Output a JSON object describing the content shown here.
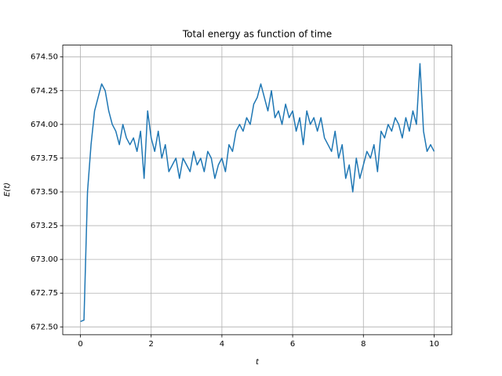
{
  "chart_data": {
    "type": "line",
    "title": "Total energy as function of time",
    "xlabel": "t",
    "ylabel": "E(t)",
    "x": [
      0,
      0.1,
      0.2,
      0.3,
      0.4,
      0.5,
      0.6,
      0.7,
      0.8,
      0.9,
      1.0,
      1.1,
      1.2,
      1.3,
      1.4,
      1.5,
      1.6,
      1.7,
      1.8,
      1.9,
      2.0,
      2.1,
      2.2,
      2.3,
      2.4,
      2.5,
      2.6,
      2.7,
      2.8,
      2.9,
      3.0,
      3.1,
      3.2,
      3.3,
      3.4,
      3.5,
      3.6,
      3.7,
      3.8,
      3.9,
      4.0,
      4.1,
      4.2,
      4.3,
      4.4,
      4.5,
      4.6,
      4.7,
      4.8,
      4.9,
      5.0,
      5.1,
      5.2,
      5.3,
      5.4,
      5.5,
      5.6,
      5.7,
      5.8,
      5.9,
      6.0,
      6.1,
      6.2,
      6.3,
      6.4,
      6.5,
      6.6,
      6.7,
      6.8,
      6.9,
      7.0,
      7.1,
      7.2,
      7.3,
      7.4,
      7.5,
      7.6,
      7.7,
      7.8,
      7.9,
      8.0,
      8.1,
      8.2,
      8.3,
      8.4,
      8.5,
      8.6,
      8.7,
      8.8,
      8.9,
      9.0,
      9.1,
      9.2,
      9.3,
      9.4,
      9.5,
      9.6,
      9.7,
      9.8,
      9.9,
      10.0
    ],
    "values": [
      672.54,
      672.55,
      673.5,
      673.85,
      674.1,
      674.2,
      674.3,
      674.25,
      674.1,
      674.0,
      673.95,
      673.85,
      674.0,
      673.9,
      673.85,
      673.9,
      673.8,
      673.95,
      673.6,
      674.1,
      673.9,
      673.8,
      673.95,
      673.75,
      673.85,
      673.65,
      673.7,
      673.75,
      673.6,
      673.75,
      673.7,
      673.65,
      673.8,
      673.7,
      673.75,
      673.65,
      673.8,
      673.75,
      673.6,
      673.7,
      673.75,
      673.65,
      673.85,
      673.8,
      673.95,
      674.0,
      673.95,
      674.05,
      674.0,
      674.15,
      674.2,
      674.3,
      674.2,
      674.1,
      674.25,
      674.05,
      674.1,
      674.0,
      674.15,
      674.05,
      674.1,
      673.95,
      674.05,
      673.85,
      674.1,
      674.0,
      674.05,
      673.95,
      674.05,
      673.9,
      673.85,
      673.8,
      673.95,
      673.75,
      673.85,
      673.6,
      673.7,
      673.5,
      673.75,
      673.6,
      673.7,
      673.8,
      673.75,
      673.85,
      673.65,
      673.95,
      673.9,
      674.0,
      673.95,
      674.05,
      674.0,
      673.9,
      674.05,
      673.95,
      674.1,
      674.0,
      674.45,
      673.95,
      673.8,
      673.85,
      673.8
    ],
    "color": "#1f77b4",
    "xlim": [
      -0.5,
      10.5
    ],
    "xticks": [
      0,
      2,
      4,
      6,
      8,
      10
    ],
    "ylim": [
      672.4425,
      674.5875
    ],
    "yticks": [
      {
        "value": 672.5,
        "label": "672.50"
      },
      {
        "value": 672.75,
        "label": "672.75"
      },
      {
        "value": 673,
        "label": "673.00"
      },
      {
        "value": 673.25,
        "label": "673.25"
      },
      {
        "value": 673.5,
        "label": "673.50"
      },
      {
        "value": 673.75,
        "label": "673.75"
      },
      {
        "value": 674,
        "label": "674.00"
      },
      {
        "value": 674.25,
        "label": "674.25"
      },
      {
        "value": 674.5,
        "label": "674.50"
      }
    ],
    "grid": true
  }
}
